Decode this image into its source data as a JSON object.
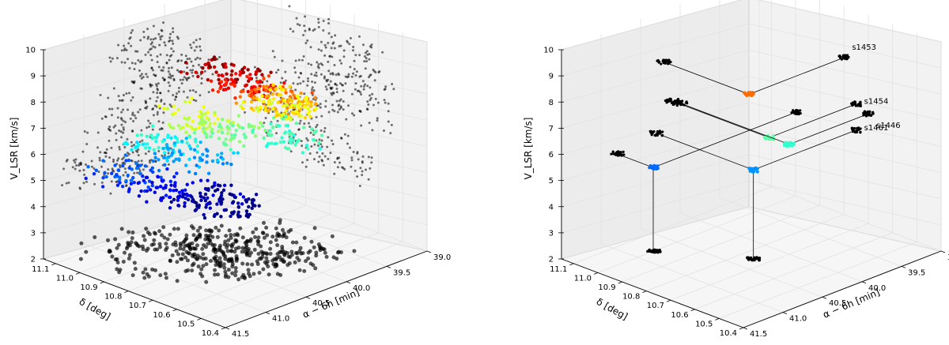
{
  "chart_data": [
    {
      "type": "scatter",
      "projection": "3d",
      "zlabel": "V_LSR [km/s]",
      "ylabel": "δ [deg]",
      "xlabel": "α − 6h [min]",
      "zticks": [
        "2",
        "3",
        "4",
        "5",
        "6",
        "7",
        "8",
        "9",
        "10"
      ],
      "zlim": [
        2,
        10
      ],
      "yticks": [
        "11.1",
        "11.0",
        "10.9",
        "10.8",
        "10.7",
        "10.6",
        "10.5",
        "10.4"
      ],
      "ylim": [
        10.4,
        11.15
      ],
      "xticks": [
        "41.5",
        "41.0",
        "40.5",
        "40.0",
        "39.5",
        "39.0"
      ],
      "xlim": [
        39.0,
        41.5
      ],
      "colormap": "jet",
      "projection_color": "#000000",
      "grid": true,
      "series": [
        {
          "label": "",
          "points": [
            {
              "x": 40.3,
              "y": 10.8,
              "v": 9.0
            },
            {
              "x": 40.2,
              "y": 10.75,
              "v": 8.5
            },
            {
              "x": 40.0,
              "y": 10.7,
              "v": 8.0
            },
            {
              "x": 39.9,
              "y": 10.7,
              "v": 7.6
            },
            {
              "x": 39.7,
              "y": 10.75,
              "v": 7.2
            },
            {
              "x": 40.4,
              "y": 10.9,
              "v": 7.0
            },
            {
              "x": 40.2,
              "y": 10.8,
              "v": 6.6
            },
            {
              "x": 39.8,
              "y": 10.7,
              "v": 6.3
            },
            {
              "x": 40.6,
              "y": 10.95,
              "v": 6.0
            },
            {
              "x": 40.4,
              "y": 10.9,
              "v": 5.5
            },
            {
              "x": 40.9,
              "y": 11.0,
              "v": 5.0
            },
            {
              "x": 40.7,
              "y": 10.9,
              "v": 4.6
            },
            {
              "x": 40.5,
              "y": 10.8,
              "v": 4.3
            },
            {
              "x": 40.3,
              "y": 10.8,
              "v": 4.0
            }
          ]
        }
      ]
    },
    {
      "type": "scatter",
      "projection": "3d",
      "zlabel": "V_LSR [km/s]",
      "ylabel": "δ [deg]",
      "xlabel": "α − 6h [min]",
      "zticks": [
        "2",
        "3",
        "4",
        "5",
        "6",
        "7",
        "8",
        "9",
        "10"
      ],
      "zlim": [
        2,
        10
      ],
      "yticks": [
        "11.1",
        "11.0",
        "10.9",
        "10.8",
        "10.7",
        "10.6",
        "10.5",
        "10.4"
      ],
      "ylim": [
        10.4,
        11.15
      ],
      "xticks": [
        "41.5",
        "41.0",
        "40.5",
        "40.0",
        "39.5",
        "39.0"
      ],
      "xlim": [
        39.0,
        41.5
      ],
      "colormap": "jet",
      "projection_color": "#000000",
      "grid": true,
      "series": [
        {
          "label": "s1453",
          "points": [
            {
              "x": 40.2,
              "y": 10.8,
              "v": 8.0
            }
          ]
        },
        {
          "label": "s1454",
          "points": [
            {
              "x": 40.1,
              "y": 10.75,
              "v": 6.4
            }
          ]
        },
        {
          "label": "s1446",
          "points": [
            {
              "x": 40.0,
              "y": 10.7,
              "v": 6.2
            }
          ]
        },
        {
          "label": "s1461",
          "points": [
            {
              "x": 40.3,
              "y": 10.75,
              "v": 5.4
            }
          ]
        },
        {
          "label": "",
          "points": [
            {
              "x": 40.8,
              "y": 11.0,
              "v": 5.2
            }
          ]
        }
      ]
    }
  ]
}
